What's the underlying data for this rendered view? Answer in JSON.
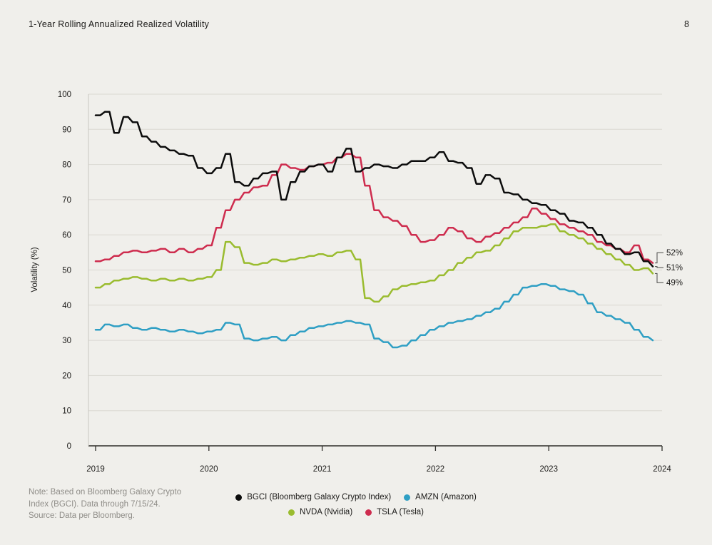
{
  "header": {
    "title": "1-Year Rolling Annualized Realized Volatility",
    "page_number": "8"
  },
  "chart_data": {
    "type": "line",
    "title": "1-Year Rolling Annualized Realized Volatility",
    "ylabel": "Volatility (%)",
    "ylim": [
      0,
      100
    ],
    "y_ticks": [
      0,
      10,
      20,
      30,
      40,
      50,
      60,
      70,
      80,
      90,
      100
    ],
    "x_domain": [
      2019,
      2024
    ],
    "x_tick_labels": [
      "2019",
      "2020",
      "2021",
      "2022",
      "2023",
      "2024"
    ],
    "x_interval": "monthly",
    "grid": "horizontal",
    "legend_position": "bottom",
    "series": [
      {
        "name": "BGCI",
        "label": "BGCI (Bloomberg Galaxy Crypto Index)",
        "color": "#0c0c0c",
        "end_label": "51%",
        "values": [
          94,
          95,
          89,
          93.5,
          92,
          88,
          86.5,
          85,
          84,
          83,
          82.5,
          79,
          77.5,
          79,
          83,
          75,
          74,
          76,
          77.5,
          78,
          70,
          75,
          78,
          79.5,
          80,
          78,
          82,
          84.5,
          78,
          79,
          80,
          79.5,
          79,
          80,
          81,
          81,
          82,
          83.5,
          81,
          80.5,
          79,
          74.5,
          77,
          76,
          72,
          71.5,
          70,
          69,
          68.5,
          67,
          66,
          64,
          63.5,
          62,
          60,
          57.5,
          56,
          54.5,
          55,
          52.5,
          51
        ]
      },
      {
        "name": "AMZN",
        "label": "AMZN (Amazon)",
        "color": "#2f9fc4",
        "end_label": null,
        "values": [
          33,
          34.5,
          34,
          34.5,
          33.5,
          33,
          33.5,
          33,
          32.5,
          33,
          32.5,
          32,
          32.5,
          33,
          35,
          34.5,
          30.5,
          30,
          30.5,
          31,
          30,
          31.5,
          32.5,
          33.5,
          34,
          34.5,
          35,
          35.5,
          35,
          34.5,
          30.5,
          29.5,
          28,
          28.5,
          30,
          31.5,
          33,
          34,
          35,
          35.5,
          36,
          37,
          38,
          39,
          41,
          43,
          45,
          45.5,
          46,
          45.5,
          44.5,
          44,
          43,
          40.5,
          38,
          37,
          36,
          35,
          33,
          31,
          30
        ]
      },
      {
        "name": "NVDA",
        "label": "NVDA (Nvidia)",
        "color": "#9abc2f",
        "end_label": "49%",
        "values": [
          45,
          46,
          47,
          47.5,
          48,
          47.5,
          47,
          47.5,
          47,
          47.5,
          47,
          47.5,
          48,
          50,
          58,
          56.5,
          52,
          51.5,
          52,
          53,
          52.5,
          53,
          53.5,
          54,
          54.5,
          54,
          55,
          55.5,
          53,
          42,
          41,
          42.5,
          44.5,
          45.5,
          46,
          46.5,
          47,
          48.5,
          50,
          52,
          53.5,
          55,
          55.5,
          57,
          59,
          61,
          62,
          62,
          62.5,
          63,
          61,
          60,
          59,
          57.5,
          56,
          54.5,
          53,
          51.5,
          50,
          50.5,
          49
        ]
      },
      {
        "name": "TSLA",
        "label": "TSLA (Tesla)",
        "color": "#ce2c4e",
        "end_label": "52%",
        "values": [
          52.5,
          53,
          54,
          55,
          55.5,
          55,
          55.5,
          56,
          55,
          56,
          55,
          56,
          57,
          62,
          67,
          70,
          72,
          73.5,
          74,
          77,
          80,
          79,
          78.5,
          79.5,
          80,
          80.5,
          82,
          83,
          82,
          74,
          67,
          65,
          64,
          62.5,
          60,
          58,
          58.5,
          60,
          62,
          61,
          59,
          58,
          59.5,
          60.5,
          62,
          63.5,
          65,
          67.5,
          66,
          64.5,
          63,
          62,
          61,
          60,
          58,
          57,
          56,
          55,
          57,
          53,
          52
        ]
      }
    ],
    "end_labels": [
      "52%",
      "51%",
      "49%"
    ]
  },
  "footnote": {
    "note_lines": [
      "Note: Based on Bloomberg Galaxy Crypto",
      "Index (BGCI). Data through 7/15/24."
    ],
    "source": "Source: Data per Bloomberg."
  }
}
